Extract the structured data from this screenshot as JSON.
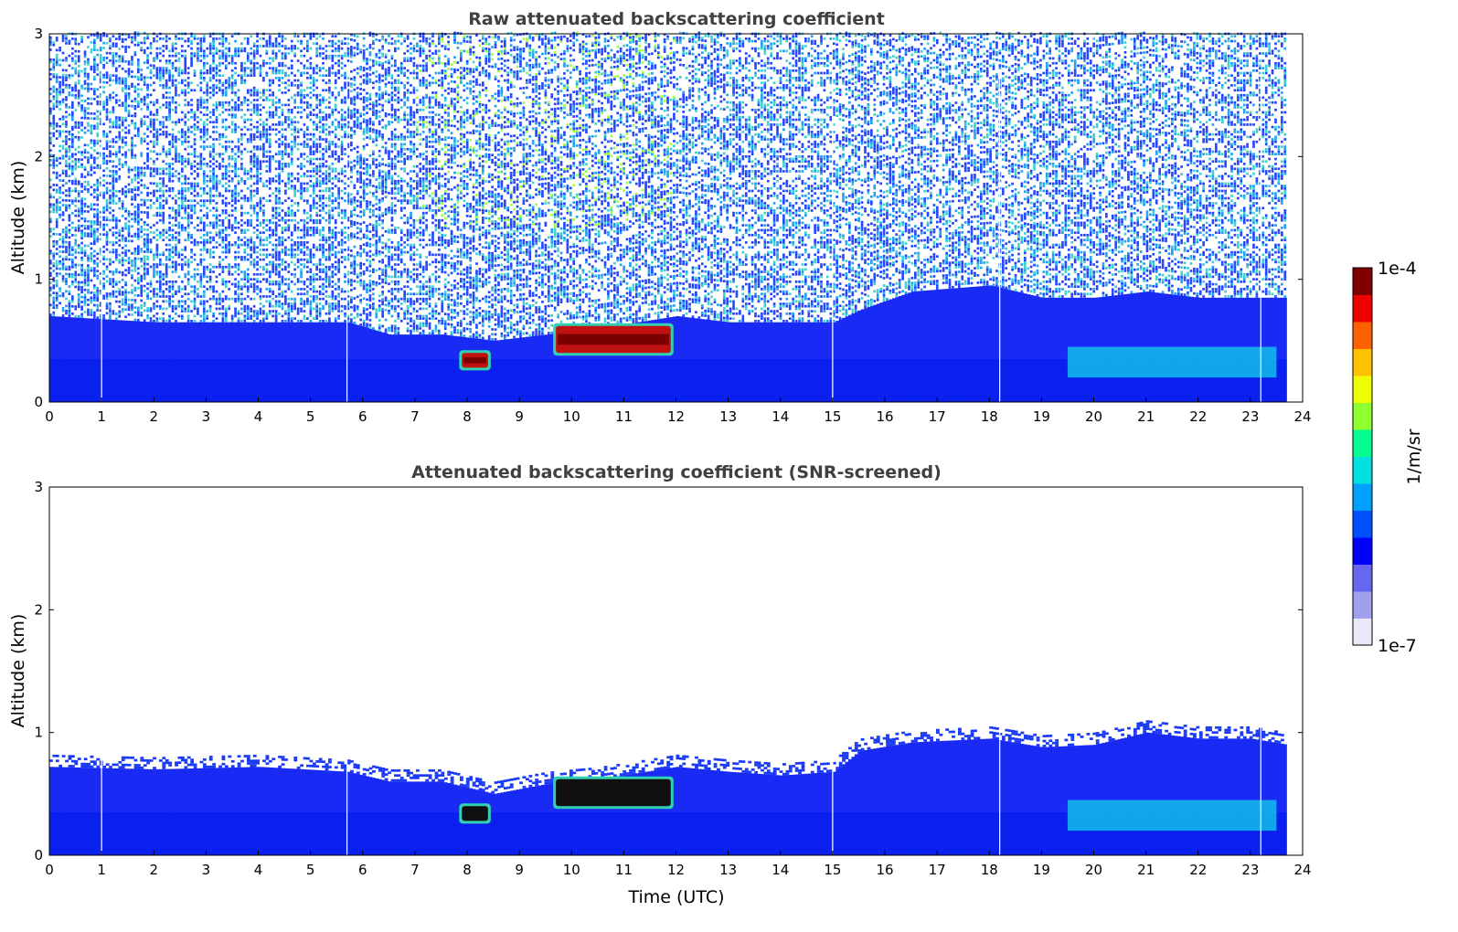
{
  "chart_data": [
    {
      "type": "heatmap",
      "title": "Raw attenuated backscattering coefficient",
      "xlabel": "",
      "ylabel": "Altitude (km)",
      "xlim": [
        0,
        24
      ],
      "ylim": [
        0,
        3
      ],
      "x_ticks": [
        "0",
        "1",
        "2",
        "3",
        "4",
        "5",
        "6",
        "7",
        "8",
        "9",
        "10",
        "11",
        "12",
        "13",
        "14",
        "15",
        "16",
        "17",
        "18",
        "19",
        "20",
        "21",
        "22",
        "23",
        "24"
      ],
      "y_ticks": [
        "0",
        "1",
        "2",
        "3"
      ],
      "data_end_time": 23.7,
      "data_gaps_time": [
        1.0,
        5.7,
        15.0,
        18.2,
        23.2
      ],
      "screened": false,
      "boundary_layer_top_km": [
        [
          0,
          0.7
        ],
        [
          2,
          0.65
        ],
        [
          4,
          0.65
        ],
        [
          5.7,
          0.65
        ],
        [
          6.5,
          0.55
        ],
        [
          7.5,
          0.55
        ],
        [
          8.5,
          0.5
        ],
        [
          9.5,
          0.55
        ],
        [
          10.5,
          0.6
        ],
        [
          12,
          0.7
        ],
        [
          13,
          0.65
        ],
        [
          14,
          0.65
        ],
        [
          15,
          0.65
        ],
        [
          15.5,
          0.75
        ],
        [
          16.5,
          0.9
        ],
        [
          18,
          0.95
        ],
        [
          19,
          0.85
        ],
        [
          20,
          0.85
        ],
        [
          21,
          0.9
        ],
        [
          22,
          0.85
        ],
        [
          23,
          0.85
        ],
        [
          23.7,
          0.85
        ]
      ],
      "cloud_layers": [
        {
          "t_start": 7.9,
          "t_end": 8.4,
          "base_km": 0.28,
          "top_km": 0.4
        },
        {
          "t_start": 9.7,
          "t_end": 11.9,
          "base_km": 0.4,
          "top_km": 0.62
        }
      ],
      "aerosol_plumes": [
        {
          "t_start": 19.5,
          "t_end": 23.5,
          "base_km": 0.2,
          "top_km": 0.45
        }
      ]
    },
    {
      "type": "heatmap",
      "title": "Attenuated backscattering coefficient (SNR-screened)",
      "xlabel": "Time (UTC)",
      "ylabel": "Altitude (km)",
      "xlim": [
        0,
        24
      ],
      "ylim": [
        0,
        3
      ],
      "x_ticks": [
        "0",
        "1",
        "2",
        "3",
        "4",
        "5",
        "6",
        "7",
        "8",
        "9",
        "10",
        "11",
        "12",
        "13",
        "14",
        "15",
        "16",
        "17",
        "18",
        "19",
        "20",
        "21",
        "22",
        "23",
        "24"
      ],
      "y_ticks": [
        "0",
        "1",
        "2",
        "3"
      ],
      "data_end_time": 23.7,
      "data_gaps_time": [
        1.0,
        5.7,
        15.0,
        18.2,
        23.2
      ],
      "screened": true,
      "boundary_layer_top_km": [
        [
          0,
          0.72
        ],
        [
          2,
          0.7
        ],
        [
          4,
          0.72
        ],
        [
          5.7,
          0.68
        ],
        [
          6.5,
          0.6
        ],
        [
          7.5,
          0.6
        ],
        [
          8.5,
          0.5
        ],
        [
          9.5,
          0.58
        ],
        [
          10.5,
          0.62
        ],
        [
          12,
          0.72
        ],
        [
          13,
          0.68
        ],
        [
          14,
          0.65
        ],
        [
          15,
          0.68
        ],
        [
          15.5,
          0.85
        ],
        [
          16.5,
          0.92
        ],
        [
          18,
          0.95
        ],
        [
          19,
          0.88
        ],
        [
          20,
          0.9
        ],
        [
          21,
          1.0
        ],
        [
          22,
          0.95
        ],
        [
          23,
          0.95
        ],
        [
          23.7,
          0.9
        ]
      ],
      "cloud_layers": [
        {
          "t_start": 7.9,
          "t_end": 8.4,
          "base_km": 0.28,
          "top_km": 0.4
        },
        {
          "t_start": 9.7,
          "t_end": 11.9,
          "base_km": 0.4,
          "top_km": 0.62
        }
      ],
      "aerosol_plumes": [
        {
          "t_start": 19.5,
          "t_end": 23.5,
          "base_km": 0.2,
          "top_km": 0.45
        }
      ]
    }
  ],
  "colorbar": {
    "min_label": "1e-7",
    "max_label": "1e-4",
    "unit_label": "1/m/sr",
    "scale": "log",
    "colors": [
      "#e8e8f8",
      "#a0a0ec",
      "#6666f0",
      "#0000ff",
      "#0050ff",
      "#00a0ff",
      "#00e0e0",
      "#00ff90",
      "#90ff30",
      "#f0ff00",
      "#ffc000",
      "#ff6000",
      "#f00000",
      "#800000"
    ]
  }
}
